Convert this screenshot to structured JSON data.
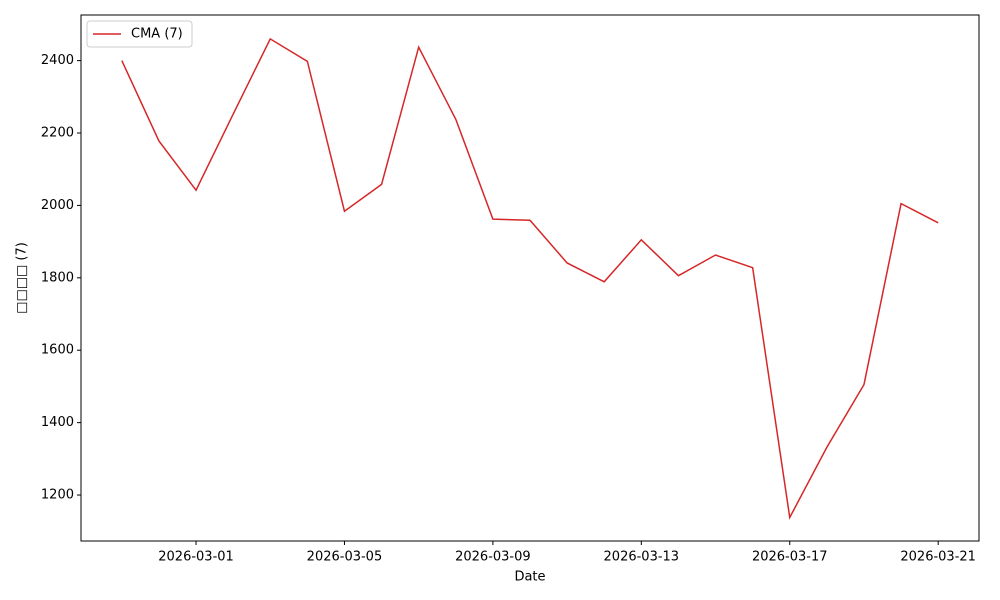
{
  "chart_data": {
    "type": "line",
    "x_label": "Date",
    "y_label": "□□□□ (7)",
    "x": [
      "2026-02-27",
      "2026-02-28",
      "2026-03-01",
      "2026-03-02",
      "2026-03-03",
      "2026-03-04",
      "2026-03-05",
      "2026-03-06",
      "2026-03-07",
      "2026-03-08",
      "2026-03-09",
      "2026-03-10",
      "2026-03-11",
      "2026-03-12",
      "2026-03-13",
      "2026-03-14",
      "2026-03-15",
      "2026-03-16",
      "2026-03-17",
      "2026-03-18",
      "2026-03-19",
      "2026-03-20",
      "2026-03-21"
    ],
    "series": [
      {
        "name": "CMA (7)",
        "color": "#d62728",
        "values": [
          2400,
          2178,
          2042,
          2252,
          2460,
          2398,
          1984,
          2058,
          2437,
          2238,
          1962,
          1959,
          1841,
          1789,
          1905,
          1806,
          1863,
          1828,
          1138,
          1332,
          1505,
          2005,
          1952
        ]
      }
    ],
    "xlim": [
      "2026-02-25T21:36",
      "2026-03-22T02:24"
    ],
    "xticks": [
      "2026-03-01",
      "2026-03-05",
      "2026-03-09",
      "2026-03-13",
      "2026-03-17",
      "2026-03-21"
    ],
    "ylim": [
      1073,
      2526
    ],
    "yticks": [
      1200,
      1400,
      1600,
      1800,
      2000,
      2200,
      2400
    ],
    "legend": "upper left"
  }
}
